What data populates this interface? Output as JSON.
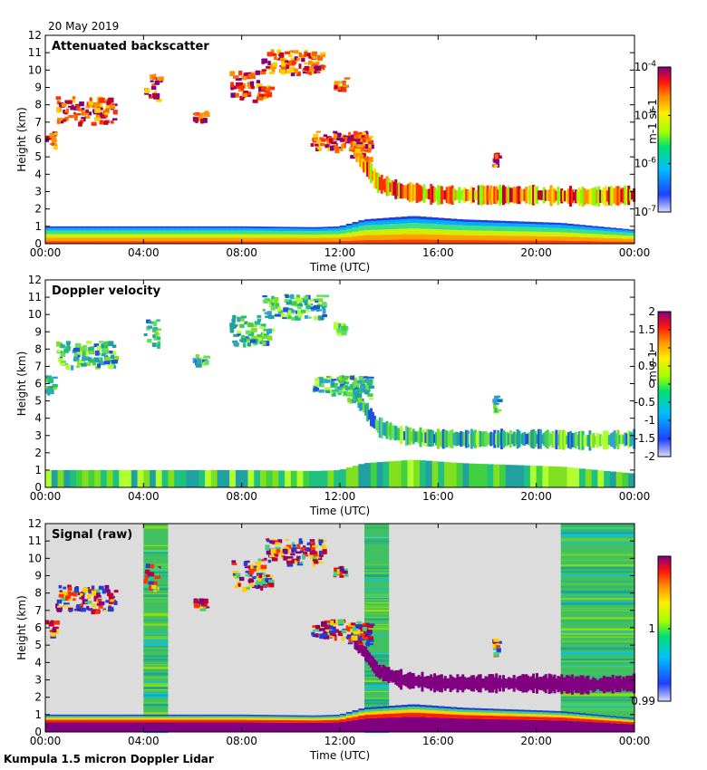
{
  "date": "20 May 2019",
  "footer": "Kumpula 1.5 micron Doppler Lidar",
  "chart_data": [
    {
      "type": "heatmap",
      "title": "Attenuated backscatter",
      "xlabel": "Time (UTC)",
      "ylabel": "Height (km)",
      "x_ticks": [
        "00:00",
        "04:00",
        "08:00",
        "12:00",
        "16:00",
        "20:00",
        "00:00"
      ],
      "xlim_hours": [
        0,
        24
      ],
      "ylim": [
        0,
        12
      ],
      "y_ticks": [
        0,
        1,
        2,
        3,
        4,
        5,
        6,
        7,
        8,
        9,
        10,
        11,
        12
      ],
      "colorbar": {
        "scale": "log",
        "range": [
          1e-07,
          0.0001
        ],
        "ticks": [
          "10-7",
          "10-6",
          "10-5",
          "10-4"
        ],
        "label": "m-1 sr-1"
      }
    },
    {
      "type": "heatmap",
      "title": "Doppler velocity",
      "xlabel": "Time (UTC)",
      "ylabel": "Height (km)",
      "x_ticks": [
        "00:00",
        "04:00",
        "08:00",
        "12:00",
        "16:00",
        "20:00",
        "00:00"
      ],
      "xlim_hours": [
        0,
        24
      ],
      "ylim": [
        0,
        12
      ],
      "y_ticks": [
        0,
        1,
        2,
        3,
        4,
        5,
        6,
        7,
        8,
        9,
        10,
        11,
        12
      ],
      "colorbar": {
        "scale": "linear",
        "range": [
          -2,
          2
        ],
        "ticks": [
          "-2",
          "-1.5",
          "-1",
          "-0.5",
          "0",
          "0.5",
          "1",
          "1.5",
          "2"
        ],
        "label": "m s-1"
      }
    },
    {
      "type": "heatmap",
      "title": "Signal (raw)",
      "xlabel": "Time (UTC)",
      "ylabel": "Height (km)",
      "x_ticks": [
        "00:00",
        "04:00",
        "08:00",
        "12:00",
        "16:00",
        "20:00",
        "00:00"
      ],
      "xlim_hours": [
        0,
        24
      ],
      "ylim": [
        0,
        12
      ],
      "y_ticks": [
        0,
        1,
        2,
        3,
        4,
        5,
        6,
        7,
        8,
        9,
        10,
        11,
        12
      ],
      "colorbar": {
        "scale": "linear",
        "range": [
          0.99,
          1.01
        ],
        "ticks": [
          "0.99",
          "1"
        ],
        "label": ""
      }
    }
  ],
  "features": {
    "cloud_blobs": [
      {
        "t0": 0.0,
        "t1": 0.4,
        "h0": 5.6,
        "h1": 6.5
      },
      {
        "t0": 0.4,
        "t1": 2.8,
        "h0": 7.0,
        "h1": 8.5
      },
      {
        "t0": 4.0,
        "t1": 4.6,
        "h0": 8.3,
        "h1": 9.8
      },
      {
        "t0": 6.0,
        "t1": 6.5,
        "h0": 7.2,
        "h1": 7.7
      },
      {
        "t0": 7.5,
        "t1": 8.8,
        "h0": 8.3,
        "h1": 10.0
      },
      {
        "t0": 8.6,
        "t1": 9.1,
        "h0": 8.4,
        "h1": 9.2
      },
      {
        "t0": 8.8,
        "t1": 11.3,
        "h0": 9.8,
        "h1": 11.2
      },
      {
        "t0": 11.7,
        "t1": 12.2,
        "h0": 9.0,
        "h1": 9.6
      },
      {
        "t0": 10.8,
        "t1": 13.2,
        "h0": 5.5,
        "h1": 6.5
      },
      {
        "t0": 12.3,
        "t1": 13.2,
        "h0": 5.0,
        "h1": 6.3
      },
      {
        "t0": 18.2,
        "t1": 18.4,
        "h0": 4.4,
        "h1": 5.4
      }
    ],
    "cloud_base_path": [
      [
        12.5,
        5.5
      ],
      [
        13.0,
        4.5
      ],
      [
        13.5,
        3.5
      ],
      [
        14.5,
        3.0
      ],
      [
        16.0,
        2.8
      ],
      [
        18.0,
        2.8
      ],
      [
        20.0,
        2.8
      ],
      [
        22.0,
        2.7
      ],
      [
        24.0,
        2.8
      ]
    ],
    "boundary_layer_top": [
      [
        0,
        1.0
      ],
      [
        4,
        1.0
      ],
      [
        8,
        1.0
      ],
      [
        11,
        0.95
      ],
      [
        12,
        1.0
      ],
      [
        13,
        1.4
      ],
      [
        15,
        1.6
      ],
      [
        17,
        1.4
      ],
      [
        19,
        1.3
      ],
      [
        21,
        1.2
      ],
      [
        24,
        0.8
      ]
    ],
    "noise_columns": [
      [
        4.0,
        5.0
      ],
      [
        13.0,
        14.0
      ],
      [
        21.0,
        24.0
      ]
    ]
  }
}
